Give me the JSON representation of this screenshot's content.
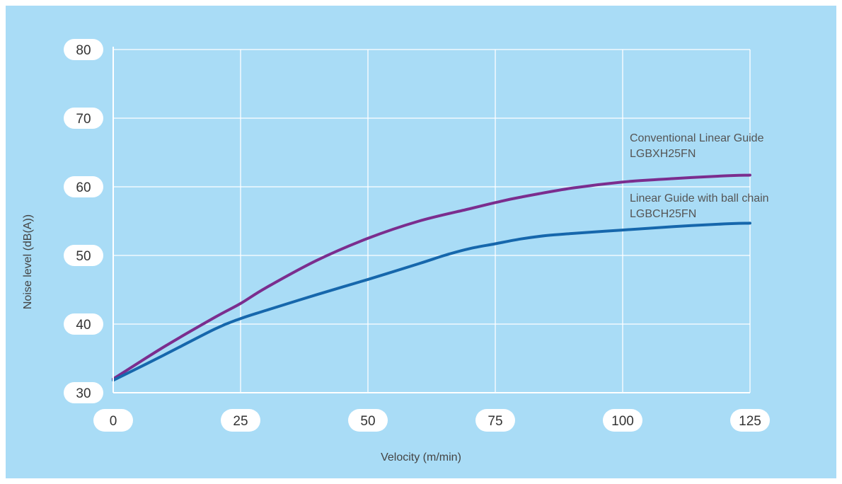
{
  "chart_data": {
    "type": "line",
    "xlabel": "Velocity (m/min)",
    "ylabel": "Noise level (dB(A))",
    "xlim": [
      0,
      125
    ],
    "ylim": [
      30,
      80
    ],
    "x_ticks": [
      "0",
      "25",
      "50",
      "75",
      "100",
      "125"
    ],
    "y_ticks": [
      "30",
      "40",
      "50",
      "60",
      "70",
      "80"
    ],
    "grid": true,
    "colors": {
      "background": "#a9dcf6",
      "grid": "#ffffff"
    },
    "series": [
      {
        "name_lines": [
          "Conventional Linear Guide",
          "LGBXH25FN"
        ],
        "color": "#7b2d8e",
        "x": [
          0,
          10,
          20,
          25,
          30,
          40,
          50,
          60,
          70,
          75,
          80,
          90,
          100,
          110,
          120,
          125
        ],
        "y": [
          32.0,
          36.7,
          41.0,
          43.0,
          45.3,
          49.3,
          52.5,
          55.0,
          56.8,
          57.7,
          58.5,
          59.8,
          60.7,
          61.2,
          61.6,
          61.7
        ]
      },
      {
        "name_lines": [
          "Linear Guide with ball chain",
          "LGBCH25FN"
        ],
        "color": "#1667ac",
        "x": [
          0,
          10,
          20,
          25,
          30,
          40,
          50,
          60,
          65,
          70,
          75,
          80,
          85,
          90,
          100,
          110,
          120,
          125
        ],
        "y": [
          31.8,
          35.5,
          39.3,
          40.8,
          42.0,
          44.3,
          46.5,
          48.8,
          50.0,
          51.0,
          51.7,
          52.4,
          52.9,
          53.2,
          53.7,
          54.2,
          54.6,
          54.7
        ]
      }
    ]
  }
}
